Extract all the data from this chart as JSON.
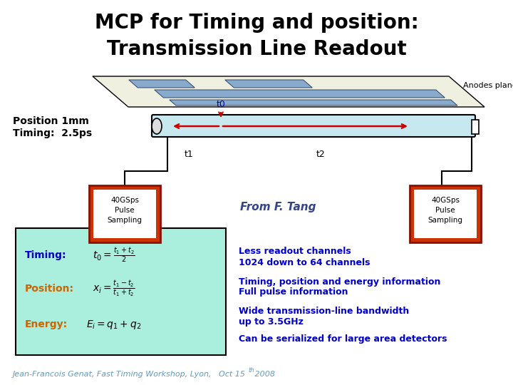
{
  "title_line1": "MCP for Timing and position:",
  "title_line2": "Transmission Line Readout",
  "title_fontsize": 20,
  "title_color": "#000000",
  "position_text": "Position 1mm",
  "timing_text": "Timing:  2.5ps",
  "label_color": "#000000",
  "t0_label": "t0",
  "t1_label": "t1",
  "t2_label": "t2",
  "anodes_label": "Anodes plane",
  "from_tang": "From F. Tang",
  "box_color": "#cc3300",
  "box_text": "40GSps\nPulse\nSampling",
  "tube_color": "#c8e8f0",
  "tube_edge": "#000000",
  "anodes_bg": "#f0f0e0",
  "formula_box_color": "#aaeedd",
  "formula_box_edge": "#000000",
  "timing_label": "Timing:",
  "position_label": "Position:",
  "energy_label": "Energy:",
  "formula_label_color_timing": "#0000cc",
  "formula_label_color_pos": "#cc6600",
  "formula_label_color_energy": "#cc6600",
  "bullet1_line1": "Less readout channels",
  "bullet1_line2": "1024 down to 64 channels",
  "bullet2_line1": "Timing, position and energy information",
  "bullet2_line2": "Full pulse information",
  "bullet3_line1": "Wide transmission-line bandwidth",
  "bullet3_line2": "up to 3.5GHz",
  "bullet4": "Can be serialized for large area detectors",
  "bullet_bold_color": "#0000cc",
  "footer": "Jean-Francois Genat, Fast Timing Workshop, Lyon,   Oct 15",
  "footer_super": "th",
  "footer_end": " 2008",
  "footer_color": "#6699bb",
  "bg_color": "#ffffff",
  "arrow_color": "#cc0000",
  "strip_color": "#88aacc",
  "strip_edge": "#334466"
}
